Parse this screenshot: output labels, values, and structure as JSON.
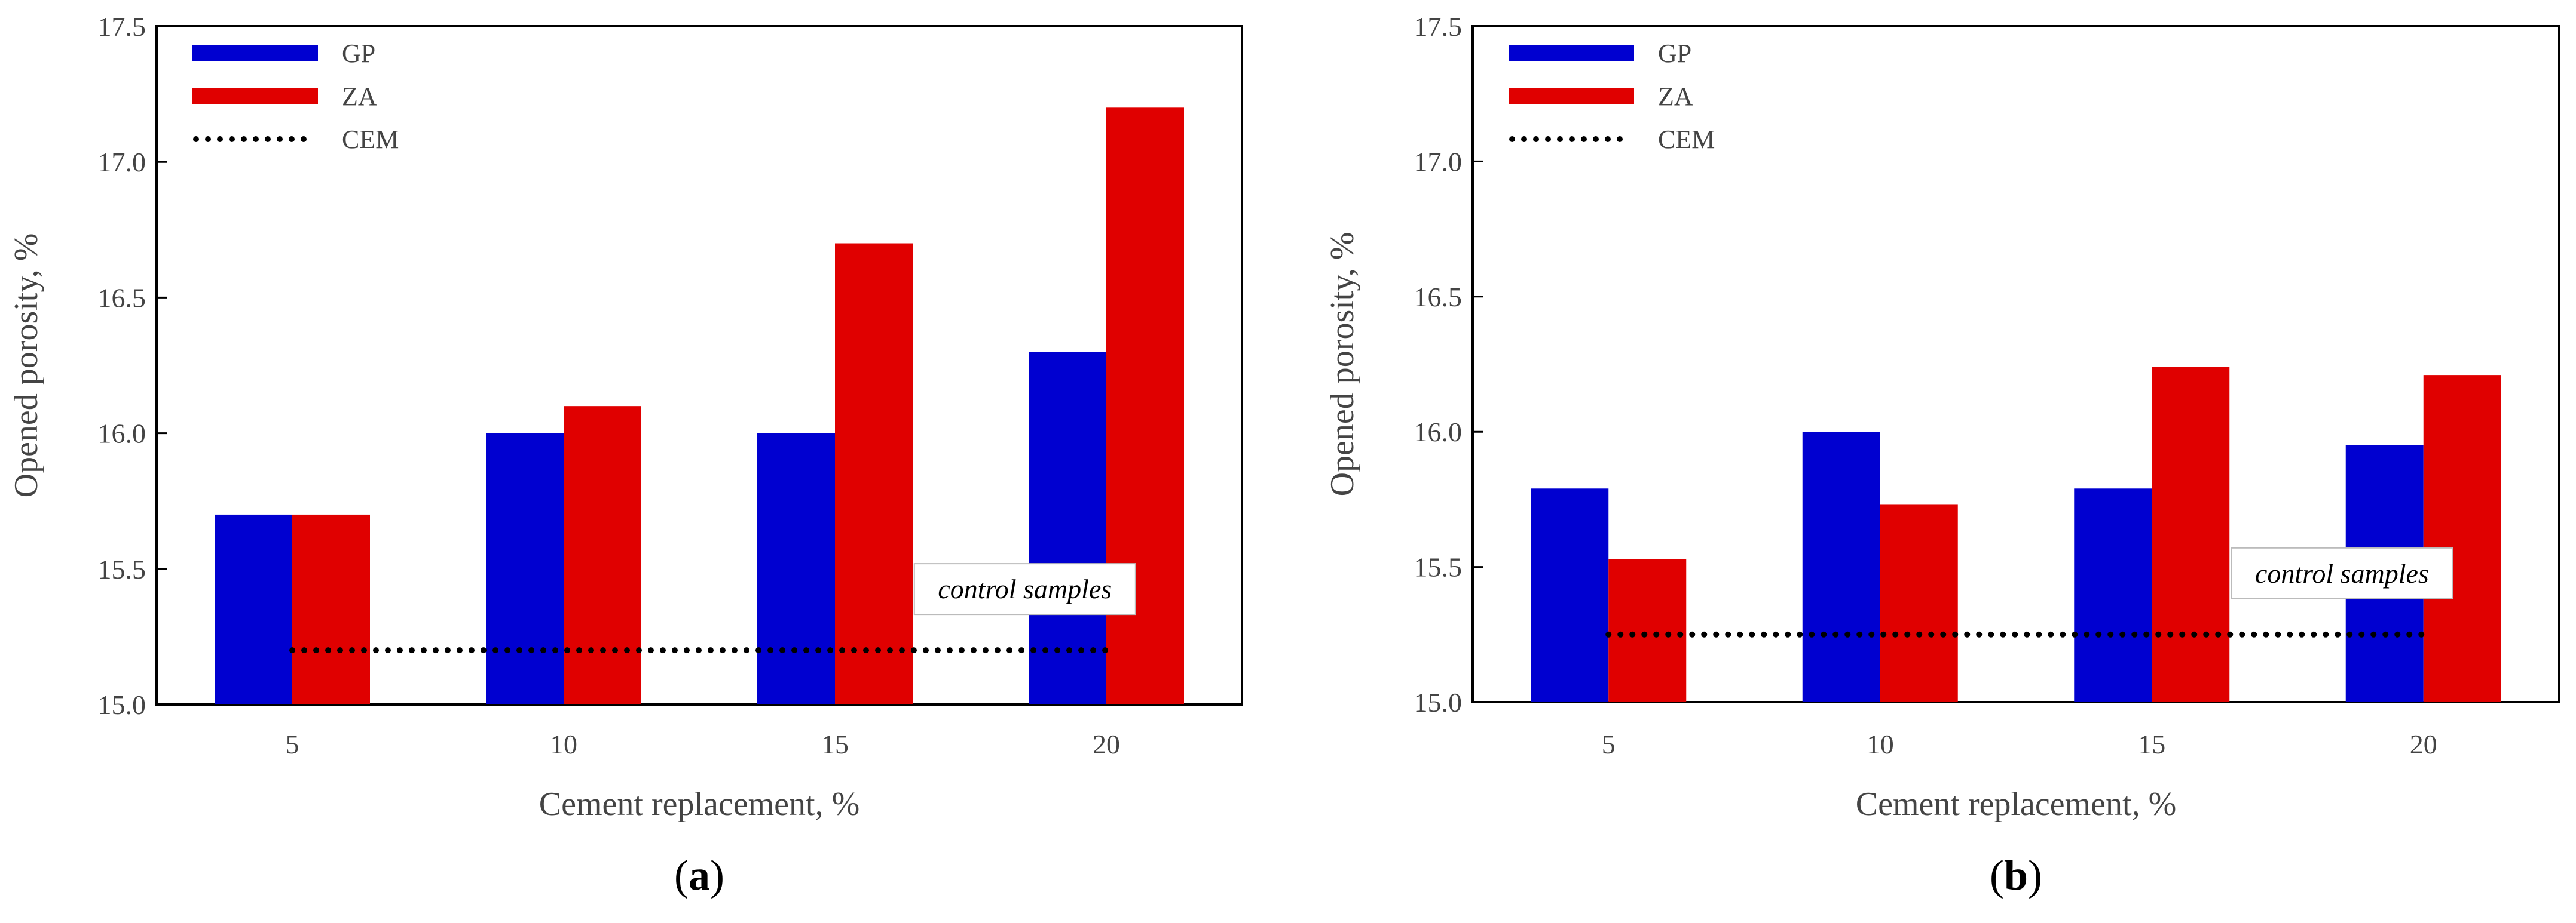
{
  "chart_data": [
    {
      "type": "bar",
      "panel_label": "a",
      "categories": [
        "5",
        "10",
        "15",
        "20"
      ],
      "series": [
        {
          "name": "GP",
          "values": [
            15.7,
            16.0,
            16.0,
            16.3
          ]
        },
        {
          "name": "ZA",
          "values": [
            15.7,
            16.1,
            16.7,
            17.2
          ]
        }
      ],
      "reference_line": {
        "name": "CEM",
        "value": 15.2,
        "style": "dotted"
      },
      "annotation": "control samples",
      "xlabel": "Cement replacement, %",
      "ylabel": "Opened porosity, %",
      "ylim": [
        15.0,
        17.5
      ],
      "yticks": [
        "15.0",
        "15.5",
        "16.0",
        "16.5",
        "17.0",
        "17.5"
      ],
      "legend": [
        "GP",
        "ZA",
        "CEM"
      ],
      "legend_position": "top-left",
      "grid": false
    },
    {
      "type": "bar",
      "panel_label": "b",
      "categories": [
        "5",
        "10",
        "15",
        "20"
      ],
      "series": [
        {
          "name": "GP",
          "values": [
            15.79,
            16.0,
            15.79,
            15.95
          ]
        },
        {
          "name": "ZA",
          "values": [
            15.53,
            15.73,
            16.24,
            16.21
          ]
        }
      ],
      "reference_line": {
        "name": "CEM",
        "value": 15.25,
        "style": "dotted"
      },
      "annotation": "control samples",
      "xlabel": "Cement replacement, %",
      "ylabel": "Opened porosity, %",
      "ylim": [
        15.0,
        17.5
      ],
      "yticks": [
        "15.0",
        "15.5",
        "16.0",
        "16.5",
        "17.0",
        "17.5"
      ],
      "legend": [
        "GP",
        "ZA",
        "CEM"
      ],
      "legend_position": "top-left",
      "grid": false
    }
  ],
  "colors": {
    "GP": "#0000d0",
    "ZA": "#e00000",
    "CEM": "#000000"
  }
}
